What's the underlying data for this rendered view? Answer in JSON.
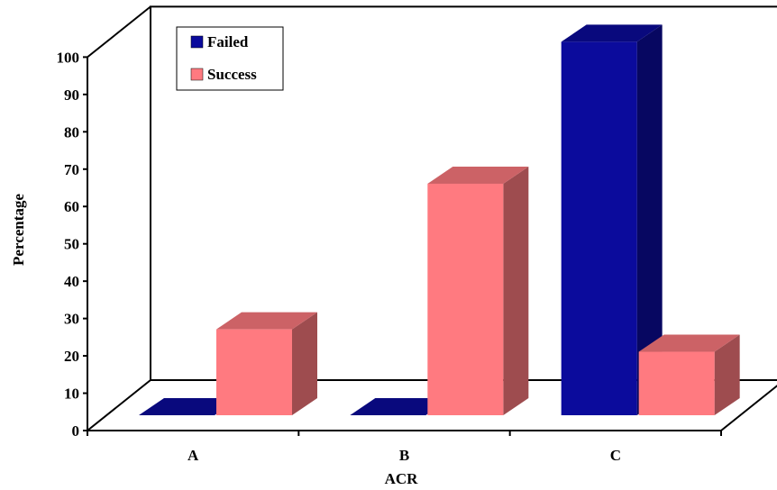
{
  "chart_data": {
    "type": "bar",
    "style": "3d-clustered",
    "title": "",
    "xlabel": "ACR",
    "ylabel": "Percentage",
    "categories": [
      "A",
      "B",
      "C"
    ],
    "ylim": [
      0,
      100
    ],
    "yticks": [
      "0",
      "10",
      "20",
      "30",
      "40",
      "50",
      "60",
      "70",
      "80",
      "90",
      "100"
    ],
    "series": [
      {
        "name": "Failed",
        "values": [
          0,
          0,
          100
        ],
        "color": "#0b0b9c"
      },
      {
        "name": "Success",
        "values": [
          23,
          62,
          17
        ],
        "color": "#ff7a80"
      }
    ],
    "legend_position": "top-left",
    "grid": false
  }
}
